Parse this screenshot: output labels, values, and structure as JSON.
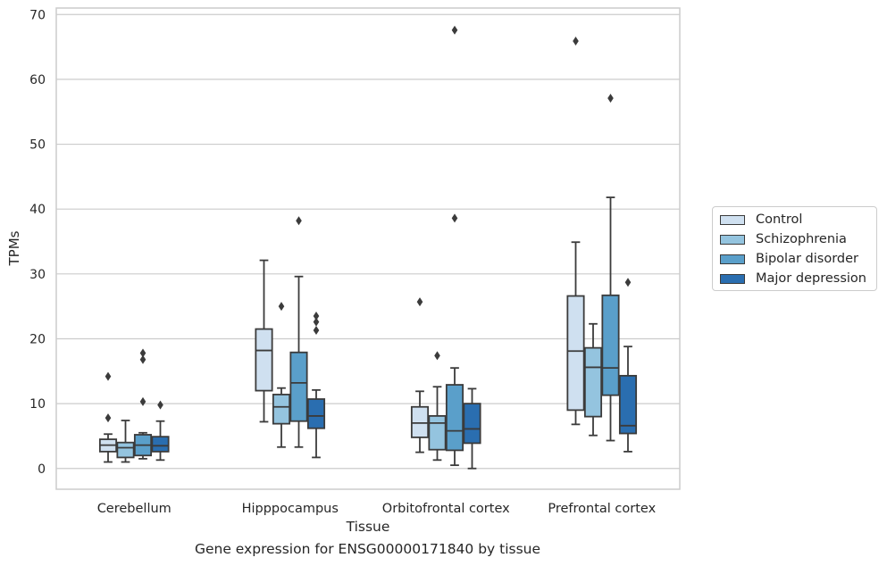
{
  "caption": "Gene expression for ENSG00000171840 by tissue",
  "chart_data": {
    "type": "boxplot",
    "title": "",
    "xlabel": "Tissue",
    "ylabel": "TPMs",
    "ylim": [
      -3.2,
      71
    ],
    "yticks": [
      "0",
      "10",
      "20",
      "30",
      "40",
      "50",
      "60",
      "70"
    ],
    "grid": true,
    "legend_position": "right",
    "categories": [
      "Cerebellum",
      "Hipppocampus",
      "Orbitofrontal cortex",
      "Prefrontal cortex"
    ],
    "series": [
      {
        "name": "Control",
        "color": "#cfe0f0",
        "boxes": [
          {
            "whisker_low": 1.0,
            "q1": 2.6,
            "median": 3.6,
            "q3": 4.5,
            "whisker_high": 5.3,
            "outliers": [
              14.2,
              7.8
            ]
          },
          {
            "whisker_low": 7.2,
            "q1": 12.0,
            "median": 18.2,
            "q3": 21.5,
            "whisker_high": 32.1,
            "outliers": []
          },
          {
            "whisker_low": 2.5,
            "q1": 4.8,
            "median": 7.0,
            "q3": 9.5,
            "whisker_high": 11.9,
            "outliers": [
              25.7
            ]
          },
          {
            "whisker_low": 6.8,
            "q1": 9.0,
            "median": 18.1,
            "q3": 26.6,
            "whisker_high": 34.9,
            "outliers": [
              65.9
            ]
          }
        ]
      },
      {
        "name": "Schizophrenia",
        "color": "#94c4df",
        "boxes": [
          {
            "whisker_low": 1.0,
            "q1": 1.7,
            "median": 3.2,
            "q3": 4.0,
            "whisker_high": 7.4,
            "outliers": []
          },
          {
            "whisker_low": 3.3,
            "q1": 6.9,
            "median": 9.5,
            "q3": 11.4,
            "whisker_high": 12.4,
            "outliers": [
              25.0
            ]
          },
          {
            "whisker_low": 1.3,
            "q1": 2.9,
            "median": 7.0,
            "q3": 8.1,
            "whisker_high": 12.6,
            "outliers": [
              17.4
            ]
          },
          {
            "whisker_low": 5.1,
            "q1": 8.0,
            "median": 15.6,
            "q3": 18.6,
            "whisker_high": 22.3,
            "outliers": []
          }
        ]
      },
      {
        "name": "Bipolar disorder",
        "color": "#5a9fca",
        "boxes": [
          {
            "whisker_low": 1.5,
            "q1": 2.0,
            "median": 3.6,
            "q3": 5.2,
            "whisker_high": 5.5,
            "outliers": [
              17.8,
              16.8,
              10.3
            ]
          },
          {
            "whisker_low": 3.3,
            "q1": 7.3,
            "median": 13.2,
            "q3": 17.9,
            "whisker_high": 29.6,
            "outliers": [
              38.2
            ]
          },
          {
            "whisker_low": 0.5,
            "q1": 2.8,
            "median": 5.8,
            "q3": 12.9,
            "whisker_high": 15.5,
            "outliers": [
              38.6,
              67.6
            ]
          },
          {
            "whisker_low": 4.3,
            "q1": 11.3,
            "median": 15.5,
            "q3": 26.7,
            "whisker_high": 41.8,
            "outliers": [
              57.1
            ]
          }
        ]
      },
      {
        "name": "Major depression",
        "color": "#2a6eb0",
        "boxes": [
          {
            "whisker_low": 1.3,
            "q1": 2.6,
            "median": 3.5,
            "q3": 4.9,
            "whisker_high": 7.3,
            "outliers": [
              9.8
            ]
          },
          {
            "whisker_low": 1.7,
            "q1": 6.2,
            "median": 8.1,
            "q3": 10.7,
            "whisker_high": 12.1,
            "outliers": [
              23.5,
              22.6,
              21.3
            ]
          },
          {
            "whisker_low": 0.0,
            "q1": 3.9,
            "median": 6.1,
            "q3": 10.0,
            "whisker_high": 12.3,
            "outliers": []
          },
          {
            "whisker_low": 2.6,
            "q1": 5.4,
            "median": 6.6,
            "q3": 14.3,
            "whisker_high": 18.8,
            "outliers": [
              28.7
            ]
          }
        ]
      }
    ]
  }
}
